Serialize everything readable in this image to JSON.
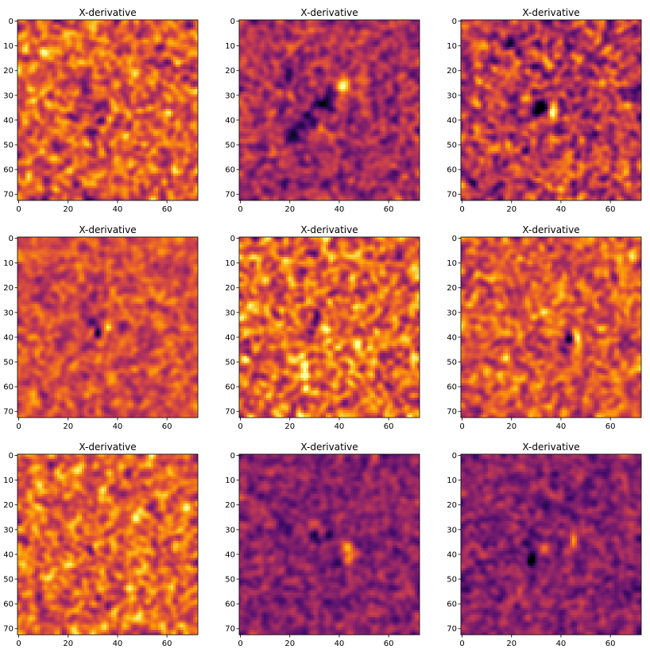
{
  "figure": {
    "rows": 3,
    "cols": 3,
    "background": "#ffffff",
    "colormap": "inferno"
  },
  "chart_data": [
    {
      "type": "heatmap",
      "title": "X-derivative",
      "xlabel": "",
      "ylabel": "",
      "grid": false,
      "xlim": [
        0,
        72
      ],
      "ylim": [
        72,
        0
      ],
      "xticks": [
        0,
        20,
        40,
        60
      ],
      "yticks": [
        0,
        10,
        20,
        30,
        40,
        50,
        60,
        70
      ],
      "base_level": 0.62,
      "noise": 0.2,
      "features": [
        {
          "x": 31,
          "y": 35,
          "sx": 5,
          "sy": 7,
          "value": -0.16
        },
        {
          "x": 33,
          "y": 40,
          "sx": 1.2,
          "sy": 1.2,
          "value": -0.6
        },
        {
          "x": 37,
          "y": 40,
          "sx": 1.2,
          "sy": 1.5,
          "value": 0.4
        },
        {
          "x": 38,
          "y": 33,
          "sx": 1.2,
          "sy": 2,
          "value": 0.22
        }
      ]
    },
    {
      "type": "heatmap",
      "title": "X-derivative",
      "xlabel": "",
      "ylabel": "",
      "grid": false,
      "xlim": [
        0,
        72
      ],
      "ylim": [
        72,
        0
      ],
      "xticks": [
        0,
        20,
        40,
        60
      ],
      "yticks": [
        0,
        10,
        20,
        30,
        40,
        50,
        60,
        70
      ],
      "base_level": 0.44,
      "noise": 0.14,
      "features": [
        {
          "x": 22,
          "y": 47,
          "sx": 2,
          "sy": 2.5,
          "value": -0.3
        },
        {
          "x": 28,
          "y": 40,
          "sx": 2,
          "sy": 2.5,
          "value": -0.32
        },
        {
          "x": 34,
          "y": 33,
          "sx": 2,
          "sy": 2.5,
          "value": -0.34
        },
        {
          "x": 38,
          "y": 29,
          "sx": 2,
          "sy": 2.5,
          "value": -0.35
        },
        {
          "x": 42,
          "y": 26,
          "sx": 2,
          "sy": 2.5,
          "value": 0.45
        },
        {
          "x": 40,
          "y": 30,
          "sx": 2,
          "sy": 2,
          "value": 0.3
        },
        {
          "x": 20,
          "y": 22,
          "sx": 2,
          "sy": 2,
          "value": -0.25
        }
      ]
    },
    {
      "type": "heatmap",
      "title": "X-derivative",
      "xlabel": "",
      "ylabel": "",
      "grid": false,
      "xlim": [
        0,
        72
      ],
      "ylim": [
        72,
        0
      ],
      "xticks": [
        0,
        20,
        40,
        60
      ],
      "yticks": [
        0,
        10,
        20,
        30,
        40,
        50,
        60,
        70
      ],
      "base_level": 0.5,
      "noise": 0.2,
      "features": [
        {
          "x": 30,
          "y": 38,
          "sx": 1.5,
          "sy": 2.2,
          "value": -0.45
        },
        {
          "x": 33,
          "y": 34,
          "sx": 1.5,
          "sy": 2,
          "value": -0.35
        },
        {
          "x": 37,
          "y": 36,
          "sx": 1.5,
          "sy": 2,
          "value": 0.4
        },
        {
          "x": 34,
          "y": 22,
          "sx": 1.5,
          "sy": 1.5,
          "value": -0.3
        }
      ]
    },
    {
      "type": "heatmap",
      "title": "X-derivative",
      "xlabel": "",
      "ylabel": "",
      "grid": false,
      "xlim": [
        0,
        72
      ],
      "ylim": [
        72,
        0
      ],
      "xticks": [
        0,
        20,
        40,
        60
      ],
      "yticks": [
        0,
        10,
        20,
        30,
        40,
        50,
        60,
        70
      ],
      "base_level": 0.58,
      "noise": 0.13,
      "features": [
        {
          "x": 32,
          "y": 38,
          "sx": 1.2,
          "sy": 1.5,
          "value": -0.6
        },
        {
          "x": 36,
          "y": 36,
          "sx": 1.2,
          "sy": 1.8,
          "value": 0.4
        },
        {
          "x": 30,
          "y": 33,
          "sx": 2,
          "sy": 2,
          "value": -0.15
        }
      ]
    },
    {
      "type": "heatmap",
      "title": "X-derivative",
      "xlabel": "",
      "ylabel": "",
      "grid": false,
      "xlim": [
        0,
        72
      ],
      "ylim": [
        72,
        0
      ],
      "xticks": [
        0,
        20,
        40,
        60
      ],
      "yticks": [
        0,
        10,
        20,
        30,
        40,
        50,
        60,
        70
      ],
      "base_level": 0.64,
      "noise": 0.2,
      "features": [
        {
          "x": 31,
          "y": 33,
          "sx": 1.5,
          "sy": 2,
          "value": -0.55
        },
        {
          "x": 34,
          "y": 36,
          "sx": 1.5,
          "sy": 1.8,
          "value": 0.35
        },
        {
          "x": 28,
          "y": 38,
          "sx": 2,
          "sy": 2,
          "value": -0.2
        },
        {
          "x": 26,
          "y": 55,
          "sx": 1.2,
          "sy": 4,
          "value": 0.3
        }
      ]
    },
    {
      "type": "heatmap",
      "title": "X-derivative",
      "xlabel": "",
      "ylabel": "",
      "grid": false,
      "xlim": [
        0,
        72
      ],
      "ylim": [
        72,
        0
      ],
      "xticks": [
        0,
        20,
        40,
        60
      ],
      "yticks": [
        0,
        10,
        20,
        30,
        40,
        50,
        60,
        70
      ],
      "base_level": 0.6,
      "noise": 0.17,
      "features": [
        {
          "x": 43,
          "y": 40,
          "sx": 1.2,
          "sy": 2,
          "value": -0.6
        },
        {
          "x": 47,
          "y": 42,
          "sx": 1.2,
          "sy": 2.5,
          "value": 0.4
        },
        {
          "x": 42,
          "y": 45,
          "sx": 1.8,
          "sy": 2,
          "value": -0.2
        }
      ]
    },
    {
      "type": "heatmap",
      "title": "X-derivative",
      "xlabel": "",
      "ylabel": "",
      "grid": false,
      "xlim": [
        0,
        72
      ],
      "ylim": [
        72,
        0
      ],
      "xticks": [
        0,
        20,
        40,
        60
      ],
      "yticks": [
        0,
        10,
        20,
        30,
        40,
        50,
        60,
        70
      ],
      "base_level": 0.64,
      "noise": 0.18,
      "features": [
        {
          "x": 29,
          "y": 38,
          "sx": 1.2,
          "sy": 1.5,
          "value": -0.55
        },
        {
          "x": 31,
          "y": 37,
          "sx": 1.2,
          "sy": 1.5,
          "value": 0.35
        },
        {
          "x": 32,
          "y": 58,
          "sx": 1.2,
          "sy": 1.2,
          "value": -0.45
        }
      ]
    },
    {
      "type": "heatmap",
      "title": "X-derivative",
      "xlabel": "",
      "ylabel": "",
      "grid": false,
      "xlim": [
        0,
        72
      ],
      "ylim": [
        72,
        0
      ],
      "xticks": [
        0,
        20,
        40,
        60
      ],
      "yticks": [
        0,
        10,
        20,
        30,
        40,
        50,
        60,
        70
      ],
      "base_level": 0.37,
      "noise": 0.12,
      "features": [
        {
          "x": 44,
          "y": 40,
          "sx": 1.5,
          "sy": 4,
          "value": 0.5
        },
        {
          "x": 36,
          "y": 32,
          "sx": 1.5,
          "sy": 1.5,
          "value": -0.3
        },
        {
          "x": 30,
          "y": 32,
          "sx": 1.2,
          "sy": 1.2,
          "value": -0.3
        },
        {
          "x": 18,
          "y": 30,
          "sx": 2,
          "sy": 2,
          "value": -0.2
        },
        {
          "x": 32,
          "y": 42,
          "sx": 6,
          "sy": 6,
          "value": -0.08
        }
      ]
    },
    {
      "type": "heatmap",
      "title": "X-derivative",
      "xlabel": "",
      "ylabel": "",
      "grid": false,
      "xlim": [
        0,
        72
      ],
      "ylim": [
        72,
        0
      ],
      "xticks": [
        0,
        20,
        40,
        60
      ],
      "yticks": [
        0,
        10,
        20,
        30,
        40,
        50,
        60,
        70
      ],
      "base_level": 0.37,
      "noise": 0.12,
      "features": [
        {
          "x": 28,
          "y": 42,
          "sx": 1.2,
          "sy": 3,
          "value": -0.4
        },
        {
          "x": 45,
          "y": 34,
          "sx": 1.2,
          "sy": 2.5,
          "value": 0.55
        },
        {
          "x": 40,
          "y": 37,
          "sx": 1.2,
          "sy": 1.5,
          "value": -0.3
        },
        {
          "x": 33,
          "y": 38,
          "sx": 1.5,
          "sy": 1.5,
          "value": 0.2
        },
        {
          "x": 26,
          "y": 35,
          "sx": 1.5,
          "sy": 1.5,
          "value": -0.25
        }
      ]
    }
  ]
}
